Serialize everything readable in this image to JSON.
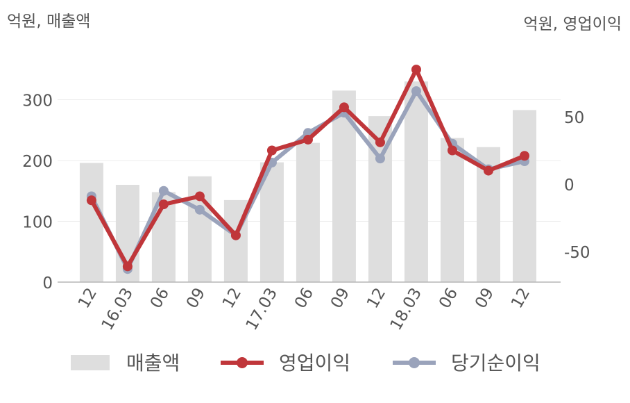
{
  "chart_data": {
    "type": "bar",
    "unit_left": "억원, 매출액",
    "unit_right": "억원, 영업이익",
    "categories": [
      "12",
      "16.03",
      "06",
      "09",
      "12",
      "17.03",
      "06",
      "09",
      "12",
      "18.03",
      "06",
      "09",
      "12"
    ],
    "left_axis": {
      "ylim": [
        0,
        370
      ],
      "ticks": [
        "0",
        "100",
        "200",
        "300"
      ],
      "tick_values": [
        0,
        100,
        200,
        300
      ]
    },
    "right_axis": {
      "ylim": [
        -73,
        100
      ],
      "ticks": [
        "-50",
        "0",
        "50"
      ],
      "tick_values": [
        -50,
        0,
        50
      ]
    },
    "series": [
      {
        "name": "매출액",
        "kind": "bar",
        "axis": "left",
        "color": "#dedede",
        "values": [
          196,
          160,
          148,
          174,
          135,
          197,
          229,
          315,
          273,
          330,
          237,
          222,
          283
        ]
      },
      {
        "name": "영업이익",
        "kind": "line",
        "axis": "right",
        "color": "#c0363a",
        "values": [
          -12,
          -61,
          -15,
          -9,
          -38,
          25,
          33,
          57,
          31,
          85,
          25,
          10,
          21
        ]
      },
      {
        "name": "당기순이익",
        "kind": "line",
        "axis": "right",
        "color": "#9aa3bb",
        "values": [
          -9,
          -63,
          -5,
          -19,
          -38,
          16,
          38,
          53,
          19,
          69,
          30,
          11,
          17
        ]
      }
    ],
    "legend": [
      "매출액",
      "영업이익",
      "당기순이익"
    ],
    "legend_position": "bottom",
    "grid": true
  }
}
